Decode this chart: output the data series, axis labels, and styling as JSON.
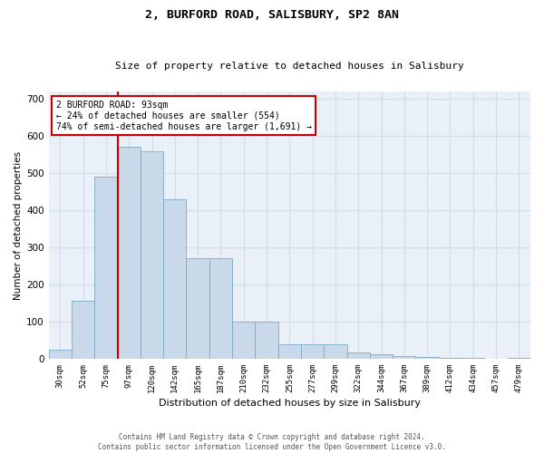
{
  "title": "2, BURFORD ROAD, SALISBURY, SP2 8AN",
  "subtitle": "Size of property relative to detached houses in Salisbury",
  "xlabel": "Distribution of detached houses by size in Salisbury",
  "ylabel": "Number of detached properties",
  "footer_line1": "Contains HM Land Registry data © Crown copyright and database right 2024.",
  "footer_line2": "Contains public sector information licensed under the Open Government Licence v3.0.",
  "annotation_line1": "2 BURFORD ROAD: 93sqm",
  "annotation_line2": "← 24% of detached houses are smaller (554)",
  "annotation_line3": "74% of semi-detached houses are larger (1,691) →",
  "bar_labels": [
    "30sqm",
    "52sqm",
    "75sqm",
    "97sqm",
    "120sqm",
    "142sqm",
    "165sqm",
    "187sqm",
    "210sqm",
    "232sqm",
    "255sqm",
    "277sqm",
    "299sqm",
    "322sqm",
    "344sqm",
    "367sqm",
    "389sqm",
    "412sqm",
    "434sqm",
    "457sqm",
    "479sqm"
  ],
  "bar_values": [
    25,
    155,
    490,
    570,
    560,
    430,
    270,
    270,
    100,
    100,
    40,
    38,
    38,
    18,
    13,
    8,
    5,
    3,
    2,
    1,
    3
  ],
  "bar_color": "#c9d9ea",
  "bar_edge_color": "#7aaac8",
  "grid_color": "#d0dcea",
  "background_color": "#eaf0f8",
  "red_line_color": "#cc0000",
  "annotation_box_color": "#cc0000",
  "ylim": [
    0,
    720
  ],
  "yticks": [
    0,
    100,
    200,
    300,
    400,
    500,
    600,
    700
  ],
  "red_line_bar_index": 3,
  "figsize": [
    6.0,
    5.0
  ],
  "dpi": 100
}
